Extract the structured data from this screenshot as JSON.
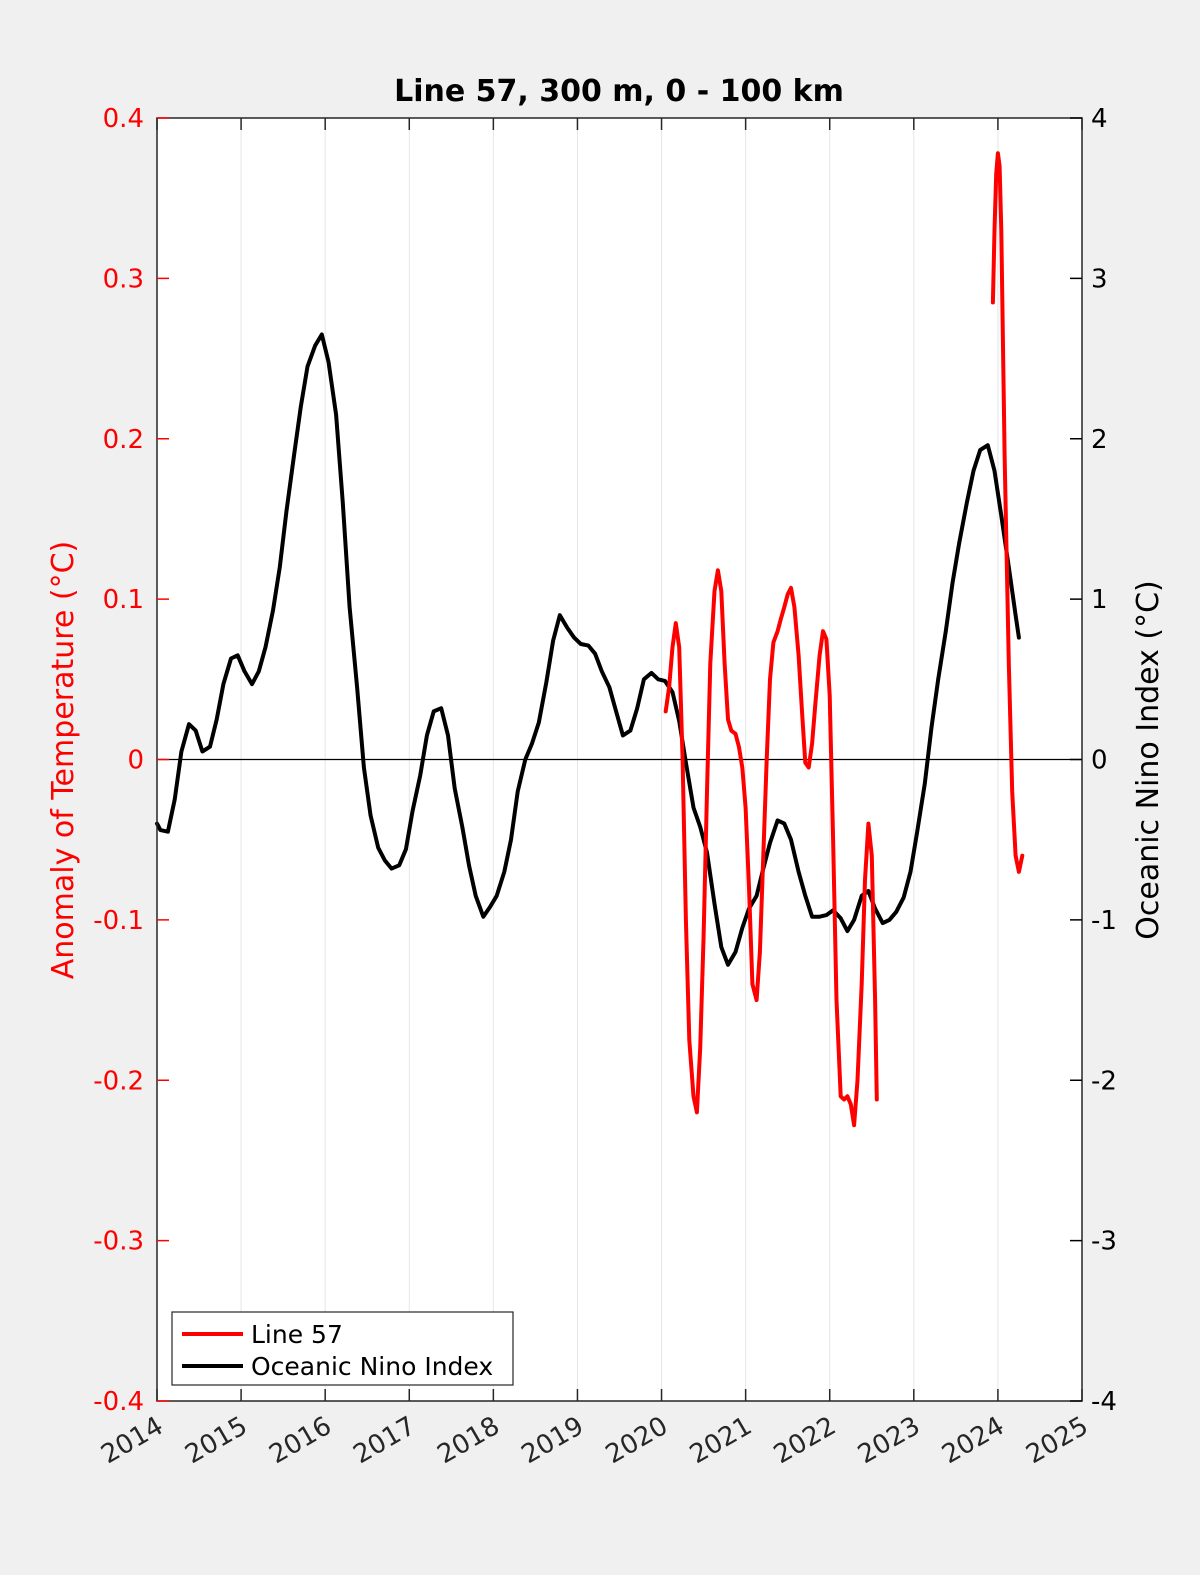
{
  "chart_data": {
    "type": "line",
    "title": "Line 57, 300 m, 0 - 100 km",
    "xlabel": "",
    "ylabel": "Anomaly of Temperature (°C)",
    "y2label": "Oceanic Nino Index (°C)",
    "xlim": [
      2014,
      2025
    ],
    "ylim": [
      -0.4,
      0.4
    ],
    "y2lim": [
      -4,
      4
    ],
    "x_ticks": [
      "2014",
      "2015",
      "2016",
      "2017",
      "2018",
      "2019",
      "2020",
      "2021",
      "2022",
      "2023",
      "2024",
      "2025"
    ],
    "y_ticks": [
      "-0.4",
      "-0.3",
      "-0.2",
      "-0.1",
      "0",
      "0.1",
      "0.2",
      "0.3",
      "0.4"
    ],
    "y2_ticks": [
      "-4",
      "-3",
      "-2",
      "-1",
      "0",
      "1",
      "2",
      "3",
      "4"
    ],
    "grid": "vertical",
    "zero_line": true,
    "legend_position": "bottom-left",
    "colors": {
      "line57": "#ff0000",
      "oni": "#000000",
      "left_axis": "#ff0000",
      "right_axis": "#000000"
    },
    "series": [
      {
        "name": "Line 57",
        "axis": "left",
        "color": "#ff0000",
        "segments": [
          [
            [
              2020.05,
              0.03
            ],
            [
              2020.09,
              0.045
            ],
            [
              2020.13,
              0.07
            ],
            [
              2020.17,
              0.085
            ],
            [
              2020.21,
              0.07
            ],
            [
              2020.25,
              0.0
            ],
            [
              2020.29,
              -0.1
            ],
            [
              2020.33,
              -0.175
            ],
            [
              2020.38,
              -0.21
            ],
            [
              2020.42,
              -0.22
            ],
            [
              2020.46,
              -0.18
            ],
            [
              2020.5,
              -0.11
            ],
            [
              2020.54,
              -0.02
            ],
            [
              2020.58,
              0.06
            ],
            [
              2020.63,
              0.105
            ],
            [
              2020.67,
              0.118
            ],
            [
              2020.71,
              0.105
            ],
            [
              2020.75,
              0.06
            ],
            [
              2020.79,
              0.025
            ],
            [
              2020.83,
              0.018
            ],
            [
              2020.88,
              0.016
            ],
            [
              2020.92,
              0.008
            ],
            [
              2020.96,
              -0.005
            ],
            [
              2021.0,
              -0.03
            ],
            [
              2021.04,
              -0.08
            ],
            [
              2021.08,
              -0.14
            ],
            [
              2021.13,
              -0.15
            ],
            [
              2021.17,
              -0.12
            ],
            [
              2021.21,
              -0.06
            ],
            [
              2021.25,
              -0.0
            ],
            [
              2021.29,
              0.05
            ],
            [
              2021.33,
              0.073
            ],
            [
              2021.38,
              0.08
            ],
            [
              2021.42,
              0.088
            ],
            [
              2021.46,
              0.095
            ],
            [
              2021.5,
              0.103
            ],
            [
              2021.54,
              0.107
            ],
            [
              2021.58,
              0.095
            ],
            [
              2021.63,
              0.065
            ],
            [
              2021.67,
              0.03
            ],
            [
              2021.71,
              -0.002
            ],
            [
              2021.75,
              -0.005
            ],
            [
              2021.79,
              0.01
            ],
            [
              2021.83,
              0.035
            ],
            [
              2021.88,
              0.065
            ],
            [
              2021.92,
              0.08
            ],
            [
              2021.96,
              0.075
            ],
            [
              2022.0,
              0.04
            ],
            [
              2022.04,
              -0.05
            ],
            [
              2022.08,
              -0.15
            ],
            [
              2022.13,
              -0.21
            ],
            [
              2022.17,
              -0.212
            ],
            [
              2022.21,
              -0.21
            ],
            [
              2022.25,
              -0.215
            ],
            [
              2022.29,
              -0.228
            ],
            [
              2022.33,
              -0.2
            ],
            [
              2022.38,
              -0.14
            ],
            [
              2022.42,
              -0.075
            ],
            [
              2022.46,
              -0.04
            ],
            [
              2022.5,
              -0.06
            ],
            [
              2022.54,
              -0.15
            ],
            [
              2022.56,
              -0.212
            ]
          ],
          [
            [
              2023.94,
              0.285
            ],
            [
              2023.96,
              0.33
            ],
            [
              2023.98,
              0.365
            ],
            [
              2024.0,
              0.378
            ],
            [
              2024.02,
              0.37
            ],
            [
              2024.04,
              0.33
            ],
            [
              2024.08,
              0.19
            ],
            [
              2024.13,
              0.06
            ],
            [
              2024.17,
              -0.02
            ],
            [
              2024.21,
              -0.06
            ],
            [
              2024.25,
              -0.07
            ],
            [
              2024.29,
              -0.06
            ]
          ]
        ]
      },
      {
        "name": "Oceanic Nino Index",
        "axis": "right",
        "color": "#000000",
        "segments": [
          [
            [
              2014.0,
              -0.4
            ],
            [
              2014.04,
              -0.44
            ],
            [
              2014.13,
              -0.45
            ],
            [
              2014.21,
              -0.25
            ],
            [
              2014.29,
              0.05
            ],
            [
              2014.38,
              0.22
            ],
            [
              2014.46,
              0.18
            ],
            [
              2014.54,
              0.05
            ],
            [
              2014.63,
              0.08
            ],
            [
              2014.71,
              0.25
            ],
            [
              2014.79,
              0.47
            ],
            [
              2014.88,
              0.63
            ],
            [
              2014.96,
              0.65
            ],
            [
              2015.04,
              0.55
            ],
            [
              2015.13,
              0.47
            ],
            [
              2015.21,
              0.55
            ],
            [
              2015.29,
              0.7
            ],
            [
              2015.38,
              0.93
            ],
            [
              2015.46,
              1.2
            ],
            [
              2015.54,
              1.55
            ],
            [
              2015.63,
              1.9
            ],
            [
              2015.71,
              2.2
            ],
            [
              2015.79,
              2.45
            ],
            [
              2015.88,
              2.58
            ],
            [
              2015.96,
              2.65
            ],
            [
              2016.04,
              2.48
            ],
            [
              2016.13,
              2.15
            ],
            [
              2016.21,
              1.6
            ],
            [
              2016.29,
              0.95
            ],
            [
              2016.38,
              0.45
            ],
            [
              2016.46,
              -0.05
            ],
            [
              2016.54,
              -0.35
            ],
            [
              2016.63,
              -0.55
            ],
            [
              2016.71,
              -0.63
            ],
            [
              2016.79,
              -0.68
            ],
            [
              2016.88,
              -0.66
            ],
            [
              2016.96,
              -0.56
            ],
            [
              2017.04,
              -0.32
            ],
            [
              2017.13,
              -0.1
            ],
            [
              2017.21,
              0.15
            ],
            [
              2017.29,
              0.3
            ],
            [
              2017.38,
              0.32
            ],
            [
              2017.46,
              0.15
            ],
            [
              2017.54,
              -0.18
            ],
            [
              2017.63,
              -0.42
            ],
            [
              2017.71,
              -0.66
            ],
            [
              2017.79,
              -0.85
            ],
            [
              2017.88,
              -0.98
            ],
            [
              2017.96,
              -0.92
            ],
            [
              2018.04,
              -0.85
            ],
            [
              2018.13,
              -0.7
            ],
            [
              2018.21,
              -0.5
            ],
            [
              2018.29,
              -0.2
            ],
            [
              2018.38,
              0.0
            ],
            [
              2018.46,
              0.1
            ],
            [
              2018.54,
              0.23
            ],
            [
              2018.63,
              0.48
            ],
            [
              2018.71,
              0.74
            ],
            [
              2018.79,
              0.9
            ],
            [
              2018.88,
              0.82
            ],
            [
              2018.96,
              0.76
            ],
            [
              2019.04,
              0.72
            ],
            [
              2019.13,
              0.71
            ],
            [
              2019.21,
              0.66
            ],
            [
              2019.29,
              0.55
            ],
            [
              2019.38,
              0.45
            ],
            [
              2019.46,
              0.3
            ],
            [
              2019.54,
              0.15
            ],
            [
              2019.63,
              0.18
            ],
            [
              2019.71,
              0.32
            ],
            [
              2019.79,
              0.5
            ],
            [
              2019.88,
              0.54
            ],
            [
              2019.96,
              0.5
            ],
            [
              2020.04,
              0.49
            ],
            [
              2020.13,
              0.42
            ],
            [
              2020.21,
              0.24
            ],
            [
              2020.29,
              -0.02
            ],
            [
              2020.38,
              -0.3
            ],
            [
              2020.46,
              -0.42
            ],
            [
              2020.54,
              -0.58
            ],
            [
              2020.63,
              -0.9
            ],
            [
              2020.71,
              -1.17
            ],
            [
              2020.79,
              -1.28
            ],
            [
              2020.88,
              -1.2
            ],
            [
              2020.96,
              -1.05
            ],
            [
              2021.04,
              -0.93
            ],
            [
              2021.13,
              -0.85
            ],
            [
              2021.21,
              -0.68
            ],
            [
              2021.29,
              -0.52
            ],
            [
              2021.38,
              -0.38
            ],
            [
              2021.46,
              -0.4
            ],
            [
              2021.54,
              -0.5
            ],
            [
              2021.63,
              -0.7
            ],
            [
              2021.71,
              -0.85
            ],
            [
              2021.79,
              -0.98
            ],
            [
              2021.88,
              -0.98
            ],
            [
              2021.96,
              -0.97
            ],
            [
              2022.04,
              -0.94
            ],
            [
              2022.13,
              -0.99
            ],
            [
              2022.21,
              -1.07
            ],
            [
              2022.29,
              -1.0
            ],
            [
              2022.38,
              -0.85
            ],
            [
              2022.46,
              -0.82
            ],
            [
              2022.54,
              -0.93
            ],
            [
              2022.63,
              -1.02
            ],
            [
              2022.71,
              -1.0
            ],
            [
              2022.79,
              -0.95
            ],
            [
              2022.88,
              -0.86
            ],
            [
              2022.96,
              -0.7
            ],
            [
              2023.04,
              -0.45
            ],
            [
              2023.13,
              -0.15
            ],
            [
              2023.21,
              0.2
            ],
            [
              2023.29,
              0.5
            ],
            [
              2023.38,
              0.8
            ],
            [
              2023.46,
              1.1
            ],
            [
              2023.54,
              1.35
            ],
            [
              2023.63,
              1.6
            ],
            [
              2023.71,
              1.8
            ],
            [
              2023.79,
              1.93
            ],
            [
              2023.88,
              1.96
            ],
            [
              2023.96,
              1.8
            ],
            [
              2024.04,
              1.52
            ],
            [
              2024.13,
              1.2
            ],
            [
              2024.21,
              0.9
            ],
            [
              2024.25,
              0.76
            ]
          ]
        ]
      }
    ]
  }
}
